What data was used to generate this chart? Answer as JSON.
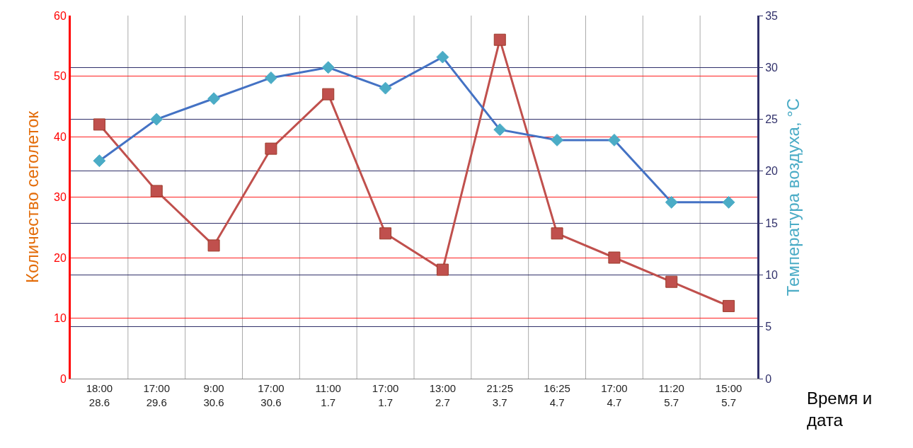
{
  "chart_data": {
    "type": "line",
    "xlabel": "Время и\nдата",
    "ylabel": "Количество сеголеток",
    "y2label": "Температура воздуха, °C",
    "categories": [
      "18:00\n28.6",
      "17:00\n29.6",
      "9:00\n30.6",
      "17:00\n30.6",
      "11:00\n1.7",
      "17:00\n1.7",
      "13:00\n2.7",
      "21:25\n3.7",
      "16:25\n4.7",
      "17:00\n4.7",
      "11:20\n5.7",
      "15:00\n5.7"
    ],
    "series": [
      {
        "color": "#c0504d",
        "marker": "square",
        "values": [
          42,
          31,
          22,
          38,
          47,
          24,
          18,
          56,
          24,
          20,
          16,
          12
        ]
      },
      {
        "color": "#4472c4",
        "marker": "diamond",
        "axis": "y2",
        "values": [
          21,
          25,
          27,
          29,
          30,
          28,
          31,
          24,
          23,
          23,
          17,
          17
        ]
      }
    ],
    "ylim": [
      0,
      60
    ],
    "yticks": [
      0,
      10,
      20,
      30,
      40,
      50,
      60
    ],
    "y2lim": [
      0,
      35
    ],
    "y2ticks": [
      0,
      5,
      10,
      15,
      20,
      25,
      30,
      35
    ],
    "grid": true,
    "legend": false
  }
}
